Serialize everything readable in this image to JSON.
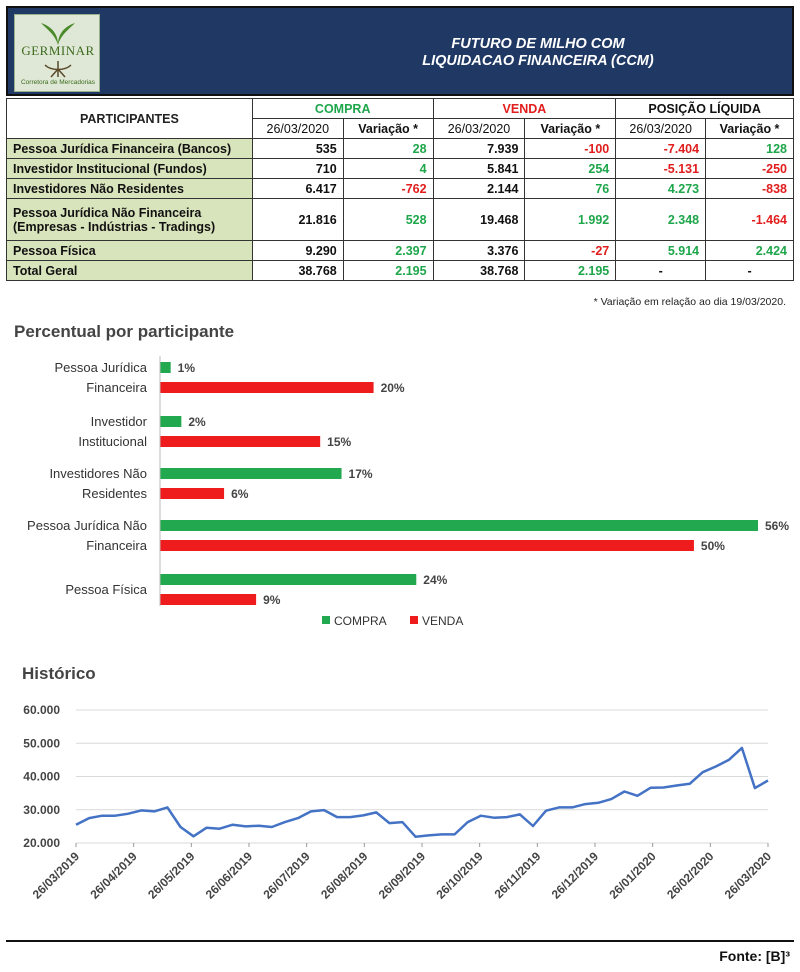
{
  "header": {
    "logo_text": "GERMINAR",
    "logo_subtext": "Corretora de Mercadorias",
    "title_line1": "FUTURO DE MILHO COM",
    "title_line2": "LIQUIDACAO FINANCEIRA (CCM)"
  },
  "table": {
    "participants_header": "PARTICIPANTES",
    "groups": [
      "COMPRA",
      "VENDA",
      "POSIÇÃO LÍQUIDA"
    ],
    "subheaders": [
      "26/03/2020",
      "Variação *",
      "26/03/2020",
      "Variação *",
      "26/03/2020",
      "Variação *"
    ],
    "rows": [
      {
        "name": "Pessoa Jurídica Financeira (Bancos)",
        "compra": "535",
        "compra_var": "28",
        "venda": "7.939",
        "venda_var": "-100",
        "pos": "-7.404",
        "pos_var": "128"
      },
      {
        "name": "Investidor Institucional (Fundos)",
        "compra": "710",
        "compra_var": "4",
        "venda": "5.841",
        "venda_var": "254",
        "pos": "-5.131",
        "pos_var": "-250"
      },
      {
        "name": "Investidores Não Residentes",
        "compra": "6.417",
        "compra_var": "-762",
        "venda": "2.144",
        "venda_var": "76",
        "pos": "4.273",
        "pos_var": "-838"
      },
      {
        "name": "Pessoa Jurídica Não Financeira",
        "name2": "(Empresas - Indústrias - Tradings)",
        "compra": "21.816",
        "compra_var": "528",
        "venda": "19.468",
        "venda_var": "1.992",
        "pos": "2.348",
        "pos_var": "-1.464"
      },
      {
        "name": "Pessoa Física",
        "compra": "9.290",
        "compra_var": "2.397",
        "venda": "3.376",
        "venda_var": "-27",
        "pos": "5.914",
        "pos_var": "2.424"
      }
    ],
    "total": {
      "name": "Total Geral",
      "compra": "38.768",
      "compra_var": "2.195",
      "venda": "38.768",
      "venda_var": "2.195",
      "pos": "-",
      "pos_var": "-"
    }
  },
  "note": "* Variação em relação ao dia 19/03/2020.",
  "source": "Fonte: [B]³",
  "colors": {
    "compra": "#22a84e",
    "venda": "#ee1c1c",
    "header_bg": "#1f3864",
    "name_bg": "#d8e4bc",
    "line": "#4472c4"
  },
  "chart_data": [
    {
      "type": "bar",
      "orientation": "horizontal",
      "title": "Percentual por participante",
      "categories": [
        [
          "Pessoa Jurídica",
          "Financeira"
        ],
        [
          "Investidor",
          "Institucional"
        ],
        [
          "Investidores Não",
          "Residentes"
        ],
        [
          "Pessoa Jurídica Não",
          "Financeira"
        ],
        [
          "Pessoa Física"
        ]
      ],
      "series": [
        {
          "name": "COMPRA",
          "values": [
            1,
            2,
            17,
            56,
            24
          ]
        },
        {
          "name": "VENDA",
          "values": [
            20,
            15,
            6,
            50,
            9
          ]
        }
      ],
      "value_suffix": "%",
      "xlim": [
        0,
        56
      ],
      "legend": "bottom",
      "grid": false
    },
    {
      "type": "line",
      "title": "Histórico",
      "ylim": [
        20000,
        60000
      ],
      "yticks": [
        "20.000",
        "30.000",
        "40.000",
        "50.000",
        "60.000"
      ],
      "xticks": [
        "26/03/2019",
        "26/04/2019",
        "26/05/2019",
        "26/06/2019",
        "26/07/2019",
        "26/08/2019",
        "26/09/2019",
        "26/10/2019",
        "26/11/2019",
        "26/12/2019",
        "26/01/2020",
        "26/02/2020",
        "26/03/2020"
      ],
      "grid": true,
      "series": [
        {
          "values": [
            25500,
            27500,
            28200,
            28200,
            28800,
            29800,
            29500,
            30700,
            24800,
            22000,
            24600,
            24300,
            25500,
            25000,
            25200,
            24800,
            26300,
            27500,
            29500,
            29900,
            27800,
            27800,
            28300,
            29200,
            26000,
            26300,
            21900,
            22300,
            22600,
            22600,
            26300,
            28200,
            27600,
            27800,
            28600,
            25100,
            29700,
            30700,
            30700,
            31700,
            32100,
            33200,
            35500,
            34200,
            36600,
            36700,
            37300,
            37800,
            41300,
            43000,
            45000,
            48600,
            36500,
            38800
          ]
        }
      ]
    }
  ]
}
